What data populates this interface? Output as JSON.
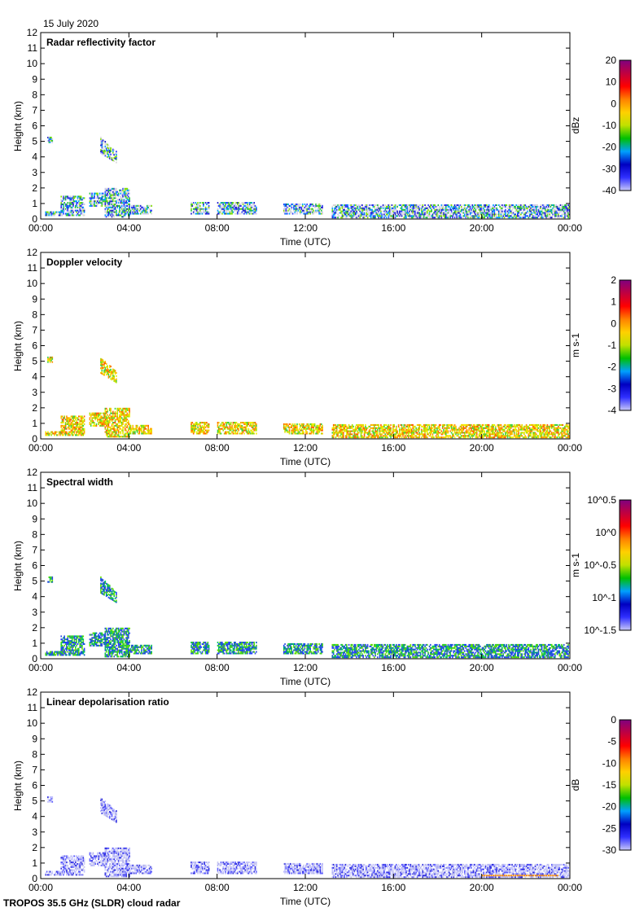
{
  "header": {
    "date": "15 July 2020",
    "footer": "TROPOS 35.5 GHz (SLDR) cloud radar"
  },
  "chart_data": [
    {
      "type": "heatmap",
      "title": "Radar reflectivity factor",
      "xlabel": "Time (UTC)",
      "ylabel": "Height (km)",
      "cbar_label": "dBz",
      "cbar_ticks": [
        "20",
        "10",
        "0",
        "-10",
        "-20",
        "-30",
        "-40"
      ],
      "palette": [
        "#d8d8d8",
        "#d8d8d8",
        "#c8c8f0",
        "#3040ff",
        "#2020d0",
        "#00a0ff",
        "#20c040",
        "#80e000"
      ]
    },
    {
      "type": "heatmap",
      "title": "Doppler velocity",
      "xlabel": "Time (UTC)",
      "ylabel": "Height (km)",
      "cbar_label": "m s-1",
      "cbar_ticks": [
        "2",
        "1",
        "0",
        "-1",
        "-2",
        "-3",
        "-4"
      ],
      "palette": [
        "#f0f000",
        "#e0e000",
        "#ffc000",
        "#ff9000",
        "#a0e000",
        "#40d040",
        "#ff6000"
      ]
    },
    {
      "type": "heatmap",
      "title": "Spectral width",
      "xlabel": "Time (UTC)",
      "ylabel": "Height (km)",
      "cbar_label": "m s-1",
      "cbar_ticks": [
        "10^0.5",
        "10^0",
        "10^-0.5",
        "10^-1",
        "10^-1.5"
      ],
      "palette": [
        "#2040ff",
        "#3050e0",
        "#00c060",
        "#40d020",
        "#1060c0",
        "#60e000"
      ]
    },
    {
      "type": "heatmap",
      "title": "Linear depolarisation ratio",
      "xlabel": "Time (UTC)",
      "ylabel": "Height (km)",
      "cbar_label": "dB",
      "cbar_ticks": [
        "0",
        "-5",
        "-10",
        "-15",
        "-20",
        "-25",
        "-30"
      ],
      "palette": [
        "#c8c8f0",
        "#b0b0f0",
        "#d0d0f8",
        "#6060ff",
        "#3030e0",
        "#c0c0ff"
      ]
    }
  ],
  "axes": {
    "x_ticks": [
      "00:00",
      "04:00",
      "08:00",
      "12:00",
      "16:00",
      "20:00",
      "00:00"
    ],
    "y_ticks": [
      "0",
      "1",
      "2",
      "3",
      "4",
      "5",
      "6",
      "7",
      "8",
      "9",
      "10",
      "11",
      "12"
    ],
    "xlim_hours": [
      0,
      24
    ],
    "ylim_km": [
      0,
      12
    ]
  },
  "cloud_features": [
    {
      "t": [
        0.3,
        0.5
      ],
      "h": [
        4.9,
        5.2
      ]
    },
    {
      "t": [
        2.7,
        3.4
      ],
      "h": [
        3.6,
        5.2
      ],
      "tilt": true
    },
    {
      "t": [
        0.2,
        1.0
      ],
      "h": [
        0.2,
        0.5
      ]
    },
    {
      "t": [
        0.9,
        2.0
      ],
      "h": [
        0.2,
        1.5
      ]
    },
    {
      "t": [
        2.2,
        2.9
      ],
      "h": [
        0.8,
        1.7
      ]
    },
    {
      "t": [
        2.9,
        4.0
      ],
      "h": [
        0.1,
        2.0
      ]
    },
    {
      "t": [
        4.0,
        5.0
      ],
      "h": [
        0.3,
        0.8
      ]
    },
    {
      "t": [
        6.8,
        7.6
      ],
      "h": [
        0.3,
        1.0
      ]
    },
    {
      "t": [
        8.0,
        9.8
      ],
      "h": [
        0.3,
        1.0
      ]
    },
    {
      "t": [
        11.0,
        12.8
      ],
      "h": [
        0.3,
        0.9
      ]
    },
    {
      "t": [
        13.2,
        24.0
      ],
      "h": [
        0.05,
        0.9
      ]
    }
  ]
}
